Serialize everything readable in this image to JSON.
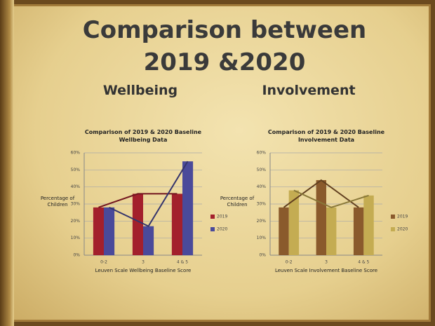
{
  "slide": {
    "title": "Comparison between 2019 &2020",
    "headings": [
      "Wellbeing",
      "Involvement"
    ]
  },
  "chart_data": [
    {
      "type": "bar",
      "title": "Comparison of 2019 & 2020 Baseline Wellbeing Data",
      "x_label": "Leuven Scale Wellbeing Baseline Score",
      "y_label": "Percentage of Children",
      "categories": [
        "0-2",
        "3",
        "4 & 5"
      ],
      "series": [
        {
          "name": "2019",
          "color": "#a3202c",
          "values": [
            28,
            36,
            36
          ]
        },
        {
          "name": "2020",
          "color": "#4a4a9a",
          "values": [
            28,
            17,
            55
          ]
        }
      ],
      "ylim": [
        0,
        60
      ],
      "yticks": [
        {
          "value": 0,
          "label": "0%"
        },
        {
          "value": 10,
          "label": "10%"
        },
        {
          "value": 20,
          "label": "20%"
        },
        {
          "value": 30,
          "label": "30%"
        },
        {
          "value": 40,
          "label": "40%"
        },
        {
          "value": 50,
          "label": "50%"
        },
        {
          "value": 60,
          "label": "60%"
        }
      ],
      "grid": true,
      "legend": "right"
    },
    {
      "type": "bar",
      "title": "Comparison of 2019 & 2020 Baseline Involvement Data",
      "x_label": "Leuven Scale Involvement Baseline Score",
      "y_label": "Percentage of Children",
      "categories": [
        "0-2",
        "3",
        "4 & 5"
      ],
      "series": [
        {
          "name": "2019",
          "color": "#8a5a2c",
          "values": [
            28,
            44,
            28
          ]
        },
        {
          "name": "2020",
          "color": "#c4ac52",
          "values": [
            38,
            28,
            35
          ]
        }
      ],
      "ylim": [
        0,
        60
      ],
      "yticks": [
        {
          "value": 0,
          "label": "0%"
        },
        {
          "value": 10,
          "label": "10%"
        },
        {
          "value": 20,
          "label": "20%"
        },
        {
          "value": 30,
          "label": "30%"
        },
        {
          "value": 40,
          "label": "40%"
        },
        {
          "value": 50,
          "label": "50%"
        },
        {
          "value": 60,
          "label": "60%"
        }
      ],
      "grid": true,
      "legend": "right"
    }
  ]
}
